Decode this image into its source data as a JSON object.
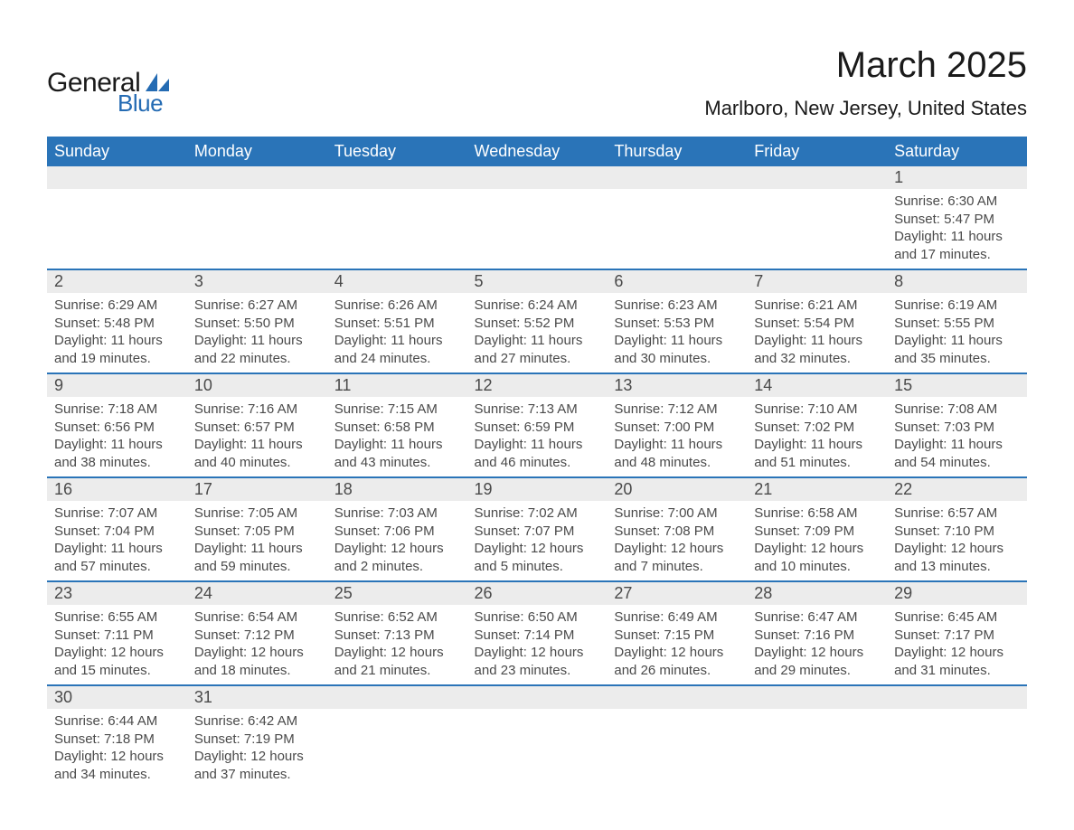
{
  "logo": {
    "general": "General",
    "blue": "Blue",
    "accent_color": "#246bb3"
  },
  "title": "March 2025",
  "subtitle": "Marlboro, New Jersey, United States",
  "header_bg": "#2a74b8",
  "daynum_bg": "#ececec",
  "row_border": "#2a74b8",
  "text_color": "#4a4a4a",
  "days": [
    "Sunday",
    "Monday",
    "Tuesday",
    "Wednesday",
    "Thursday",
    "Friday",
    "Saturday"
  ],
  "weeks": [
    [
      null,
      null,
      null,
      null,
      null,
      null,
      {
        "n": "1",
        "sunrise": "Sunrise: 6:30 AM",
        "sunset": "Sunset: 5:47 PM",
        "d1": "Daylight: 11 hours",
        "d2": "and 17 minutes."
      }
    ],
    [
      {
        "n": "2",
        "sunrise": "Sunrise: 6:29 AM",
        "sunset": "Sunset: 5:48 PM",
        "d1": "Daylight: 11 hours",
        "d2": "and 19 minutes."
      },
      {
        "n": "3",
        "sunrise": "Sunrise: 6:27 AM",
        "sunset": "Sunset: 5:50 PM",
        "d1": "Daylight: 11 hours",
        "d2": "and 22 minutes."
      },
      {
        "n": "4",
        "sunrise": "Sunrise: 6:26 AM",
        "sunset": "Sunset: 5:51 PM",
        "d1": "Daylight: 11 hours",
        "d2": "and 24 minutes."
      },
      {
        "n": "5",
        "sunrise": "Sunrise: 6:24 AM",
        "sunset": "Sunset: 5:52 PM",
        "d1": "Daylight: 11 hours",
        "d2": "and 27 minutes."
      },
      {
        "n": "6",
        "sunrise": "Sunrise: 6:23 AM",
        "sunset": "Sunset: 5:53 PM",
        "d1": "Daylight: 11 hours",
        "d2": "and 30 minutes."
      },
      {
        "n": "7",
        "sunrise": "Sunrise: 6:21 AM",
        "sunset": "Sunset: 5:54 PM",
        "d1": "Daylight: 11 hours",
        "d2": "and 32 minutes."
      },
      {
        "n": "8",
        "sunrise": "Sunrise: 6:19 AM",
        "sunset": "Sunset: 5:55 PM",
        "d1": "Daylight: 11 hours",
        "d2": "and 35 minutes."
      }
    ],
    [
      {
        "n": "9",
        "sunrise": "Sunrise: 7:18 AM",
        "sunset": "Sunset: 6:56 PM",
        "d1": "Daylight: 11 hours",
        "d2": "and 38 minutes."
      },
      {
        "n": "10",
        "sunrise": "Sunrise: 7:16 AM",
        "sunset": "Sunset: 6:57 PM",
        "d1": "Daylight: 11 hours",
        "d2": "and 40 minutes."
      },
      {
        "n": "11",
        "sunrise": "Sunrise: 7:15 AM",
        "sunset": "Sunset: 6:58 PM",
        "d1": "Daylight: 11 hours",
        "d2": "and 43 minutes."
      },
      {
        "n": "12",
        "sunrise": "Sunrise: 7:13 AM",
        "sunset": "Sunset: 6:59 PM",
        "d1": "Daylight: 11 hours",
        "d2": "and 46 minutes."
      },
      {
        "n": "13",
        "sunrise": "Sunrise: 7:12 AM",
        "sunset": "Sunset: 7:00 PM",
        "d1": "Daylight: 11 hours",
        "d2": "and 48 minutes."
      },
      {
        "n": "14",
        "sunrise": "Sunrise: 7:10 AM",
        "sunset": "Sunset: 7:02 PM",
        "d1": "Daylight: 11 hours",
        "d2": "and 51 minutes."
      },
      {
        "n": "15",
        "sunrise": "Sunrise: 7:08 AM",
        "sunset": "Sunset: 7:03 PM",
        "d1": "Daylight: 11 hours",
        "d2": "and 54 minutes."
      }
    ],
    [
      {
        "n": "16",
        "sunrise": "Sunrise: 7:07 AM",
        "sunset": "Sunset: 7:04 PM",
        "d1": "Daylight: 11 hours",
        "d2": "and 57 minutes."
      },
      {
        "n": "17",
        "sunrise": "Sunrise: 7:05 AM",
        "sunset": "Sunset: 7:05 PM",
        "d1": "Daylight: 11 hours",
        "d2": "and 59 minutes."
      },
      {
        "n": "18",
        "sunrise": "Sunrise: 7:03 AM",
        "sunset": "Sunset: 7:06 PM",
        "d1": "Daylight: 12 hours",
        "d2": "and 2 minutes."
      },
      {
        "n": "19",
        "sunrise": "Sunrise: 7:02 AM",
        "sunset": "Sunset: 7:07 PM",
        "d1": "Daylight: 12 hours",
        "d2": "and 5 minutes."
      },
      {
        "n": "20",
        "sunrise": "Sunrise: 7:00 AM",
        "sunset": "Sunset: 7:08 PM",
        "d1": "Daylight: 12 hours",
        "d2": "and 7 minutes."
      },
      {
        "n": "21",
        "sunrise": "Sunrise: 6:58 AM",
        "sunset": "Sunset: 7:09 PM",
        "d1": "Daylight: 12 hours",
        "d2": "and 10 minutes."
      },
      {
        "n": "22",
        "sunrise": "Sunrise: 6:57 AM",
        "sunset": "Sunset: 7:10 PM",
        "d1": "Daylight: 12 hours",
        "d2": "and 13 minutes."
      }
    ],
    [
      {
        "n": "23",
        "sunrise": "Sunrise: 6:55 AM",
        "sunset": "Sunset: 7:11 PM",
        "d1": "Daylight: 12 hours",
        "d2": "and 15 minutes."
      },
      {
        "n": "24",
        "sunrise": "Sunrise: 6:54 AM",
        "sunset": "Sunset: 7:12 PM",
        "d1": "Daylight: 12 hours",
        "d2": "and 18 minutes."
      },
      {
        "n": "25",
        "sunrise": "Sunrise: 6:52 AM",
        "sunset": "Sunset: 7:13 PM",
        "d1": "Daylight: 12 hours",
        "d2": "and 21 minutes."
      },
      {
        "n": "26",
        "sunrise": "Sunrise: 6:50 AM",
        "sunset": "Sunset: 7:14 PM",
        "d1": "Daylight: 12 hours",
        "d2": "and 23 minutes."
      },
      {
        "n": "27",
        "sunrise": "Sunrise: 6:49 AM",
        "sunset": "Sunset: 7:15 PM",
        "d1": "Daylight: 12 hours",
        "d2": "and 26 minutes."
      },
      {
        "n": "28",
        "sunrise": "Sunrise: 6:47 AM",
        "sunset": "Sunset: 7:16 PM",
        "d1": "Daylight: 12 hours",
        "d2": "and 29 minutes."
      },
      {
        "n": "29",
        "sunrise": "Sunrise: 6:45 AM",
        "sunset": "Sunset: 7:17 PM",
        "d1": "Daylight: 12 hours",
        "d2": "and 31 minutes."
      }
    ],
    [
      {
        "n": "30",
        "sunrise": "Sunrise: 6:44 AM",
        "sunset": "Sunset: 7:18 PM",
        "d1": "Daylight: 12 hours",
        "d2": "and 34 minutes."
      },
      {
        "n": "31",
        "sunrise": "Sunrise: 6:42 AM",
        "sunset": "Sunset: 7:19 PM",
        "d1": "Daylight: 12 hours",
        "d2": "and 37 minutes."
      },
      null,
      null,
      null,
      null,
      null
    ]
  ]
}
